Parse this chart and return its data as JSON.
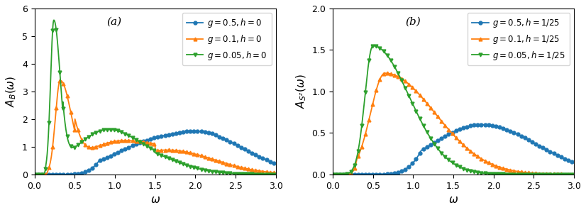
{
  "panel_a": {
    "label": "(a)",
    "ylabel": "$A_B(\\omega)$",
    "xlabel": "$\\omega$",
    "ylim": [
      0.0,
      6.0
    ],
    "xlim": [
      0.0,
      3.0
    ],
    "yticks": [
      0.0,
      1.0,
      2.0,
      3.0,
      4.0,
      5.0,
      6.0
    ],
    "xticks": [
      0.0,
      0.5,
      1.0,
      1.5,
      2.0,
      2.5,
      3.0
    ],
    "legend": [
      {
        "label": "$g = 0.5, h = 0$",
        "color": "#1f77b4",
        "marker": "o"
      },
      {
        "label": "$g = 0.1, h = 0$",
        "color": "#ff7f0e",
        "marker": "^"
      },
      {
        "label": "$g = 0.05, h = 0$",
        "color": "#2ca02c",
        "marker": "v"
      }
    ]
  },
  "panel_b": {
    "label": "(b)",
    "ylabel": "$A_{S^z}(\\omega)$",
    "xlabel": "$\\omega$",
    "ylim": [
      0.0,
      2.0
    ],
    "xlim": [
      0.0,
      3.0
    ],
    "yticks": [
      0.0,
      0.5,
      1.0,
      1.5,
      2.0
    ],
    "xticks": [
      0.0,
      0.5,
      1.0,
      1.5,
      2.0,
      2.5,
      3.0
    ],
    "legend": [
      {
        "label": "$g = 0.5, h = 1/25$",
        "color": "#1f77b4",
        "marker": "o"
      },
      {
        "label": "$g = 0.1, h = 1/25$",
        "color": "#ff7f0e",
        "marker": "^"
      },
      {
        "label": "$g = 0.05, h = 1/25$",
        "color": "#2ca02c",
        "marker": "v"
      }
    ]
  },
  "colors": {
    "blue": "#1f77b4",
    "orange": "#ff7f0e",
    "green": "#2ca02c"
  },
  "marker_size": 3.5,
  "linewidth": 1.3,
  "figsize": [
    8.26,
    2.96
  ],
  "dpi": 100
}
